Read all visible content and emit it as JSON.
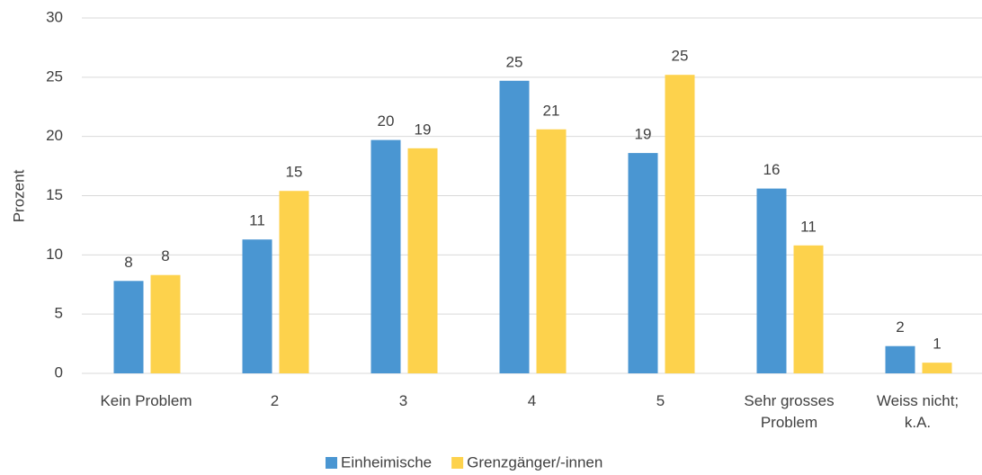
{
  "chart_data": {
    "type": "bar",
    "y_label": "Prozent",
    "categories": [
      "Kein Problem",
      "2",
      "3",
      "4",
      "5",
      "Sehr grosses Problem",
      "Weiss nicht; k.A."
    ],
    "series": [
      {
        "name": "Einheimische",
        "color": "#4a96d2",
        "values": [
          7.8,
          11.3,
          19.7,
          24.7,
          18.6,
          15.6,
          2.3
        ],
        "value_labels": [
          "8",
          "11",
          "20",
          "25",
          "19",
          "16",
          "2"
        ]
      },
      {
        "name": "Grenzgänger/-innen",
        "color": "#fdd24c",
        "values": [
          8.3,
          15.4,
          19.0,
          20.6,
          25.2,
          10.8,
          0.9
        ],
        "value_labels": [
          "8",
          "15",
          "19",
          "21",
          "25",
          "11",
          "1"
        ]
      }
    ],
    "ylim": [
      0,
      30
    ],
    "yticks": [
      0,
      5,
      10,
      15,
      20,
      25,
      30
    ],
    "grid": true,
    "legend": "bottom"
  }
}
